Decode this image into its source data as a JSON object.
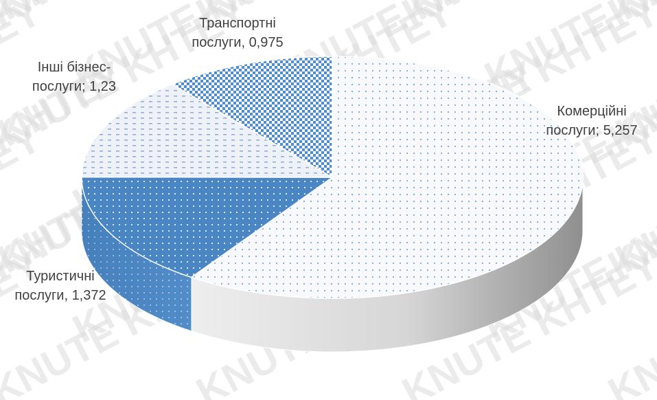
{
  "watermark": {
    "text": "KNUTE KHTEY"
  },
  "chart_data": {
    "type": "pie",
    "style": "3d",
    "categories": [
      "Комерційні послуги",
      "Туристичні послуги",
      "Інші бізнес-послуги",
      "Транспортні послуги"
    ],
    "values": [
      5.257,
      1.372,
      1.23,
      0.975
    ],
    "labels": [
      {
        "line1": "Комерційні",
        "line2": "послуги; 5,257"
      },
      {
        "line1": "Туристичні",
        "line2": "послуги, 1,372"
      },
      {
        "line1": "Інші бізнес-",
        "line2": "послуги; 1,23"
      },
      {
        "line1": "Транспортні",
        "line2": "послуги, 0,975"
      }
    ],
    "colors": [
      "#f6f8fb",
      "#4a86c4",
      "#e9eef5",
      "#5b95cf"
    ],
    "legend": "none",
    "title": ""
  }
}
